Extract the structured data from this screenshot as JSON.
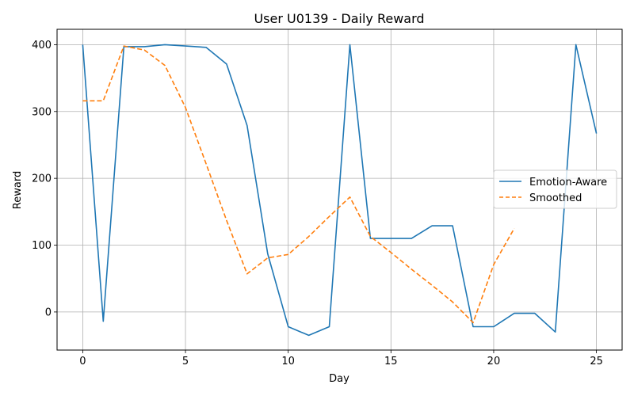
{
  "chart_data": {
    "type": "line",
    "title": "User U0139 - Daily Reward",
    "xlabel": "Day",
    "ylabel": "Reward",
    "xlim": [
      -1.25,
      26.25
    ],
    "ylim": [
      -57,
      423
    ],
    "xticks": [
      0,
      5,
      10,
      15,
      20,
      25
    ],
    "yticks": [
      0,
      100,
      200,
      300,
      400
    ],
    "grid": true,
    "legend": "center-right",
    "series": [
      {
        "name": "Emotion-Aware",
        "color": "#1f77b4",
        "style": "solid",
        "x": [
          0,
          1,
          2,
          3,
          4,
          5,
          6,
          7,
          8,
          9,
          10,
          11,
          12,
          13,
          14,
          15,
          16,
          17,
          18,
          19,
          20,
          21,
          22,
          23,
          24,
          25
        ],
        "y": [
          400,
          -14,
          397,
          397,
          400,
          398,
          396,
          371,
          279,
          87,
          -22,
          -35,
          -22,
          400,
          110,
          110,
          110,
          129,
          129,
          -22,
          -22,
          -2,
          -2,
          -30,
          400,
          267
        ]
      },
      {
        "name": "Smoothed",
        "color": "#ff7f0e",
        "style": "dashed",
        "x": [
          0,
          1,
          2,
          3,
          4,
          5,
          6,
          7,
          8,
          9,
          10,
          11,
          12,
          13,
          14,
          15,
          16,
          17,
          18,
          19,
          20,
          21
        ],
        "y": [
          316,
          316,
          398,
          392,
          369,
          306,
          222,
          137,
          57,
          81,
          86,
          113,
          143,
          172,
          113,
          89,
          64,
          40,
          15,
          -16,
          71,
          125
        ]
      }
    ]
  }
}
